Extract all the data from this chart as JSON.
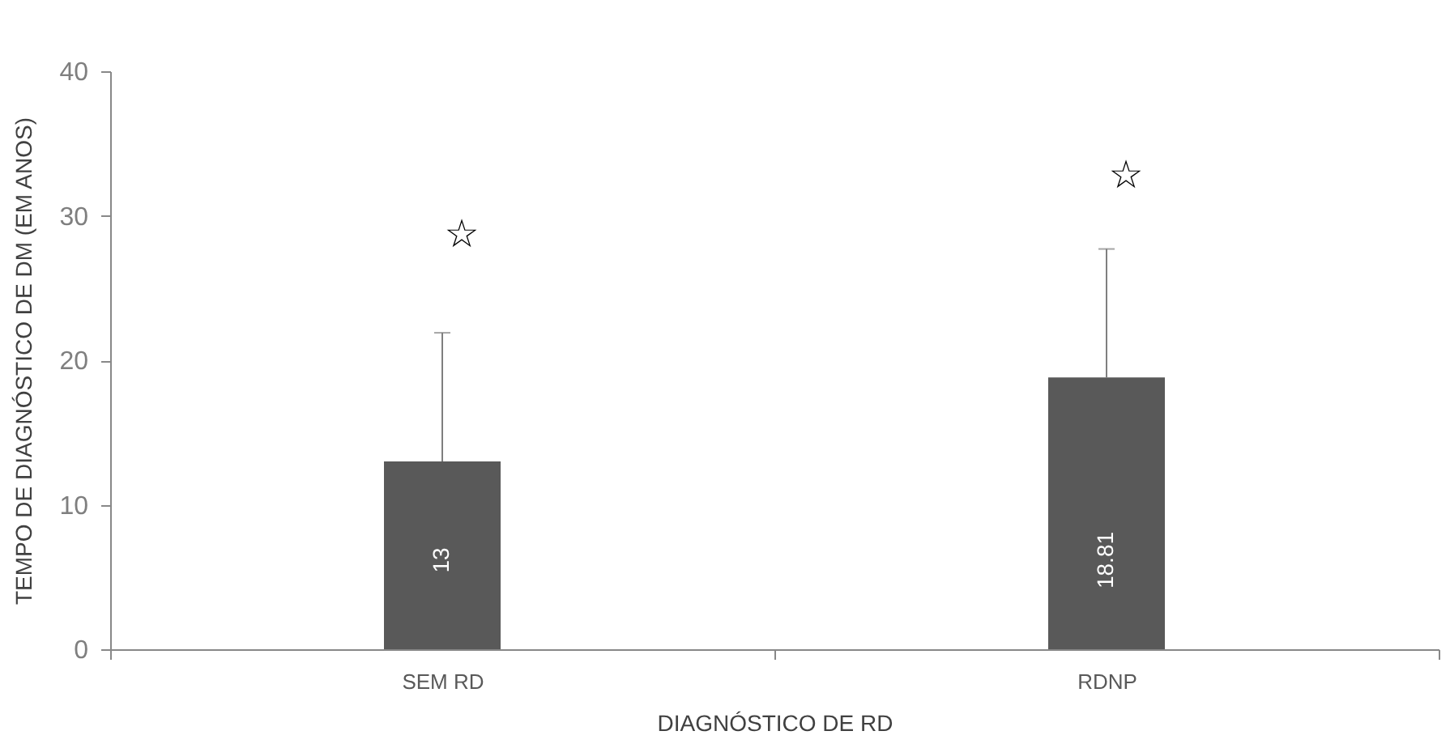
{
  "chart_data": {
    "type": "bar",
    "xlabel": "DIAGNÓSTICO DE RD",
    "ylabel": "TEMPO DE DIAGNÓSTICO DE DM (EM ANOS)",
    "categories": [
      "SEM RD",
      "RDNP"
    ],
    "values": [
      13,
      18.81
    ],
    "color": "#595959",
    "errors": [
      [
        13,
        21.9
      ],
      [
        18.81,
        27.7
      ]
    ],
    "data_labels": true,
    "ylim": [
      0,
      40
    ],
    "yticks": [
      0,
      10,
      20,
      30,
      40
    ],
    "grid": false,
    "annotations": [
      "☆",
      "☆"
    ]
  }
}
